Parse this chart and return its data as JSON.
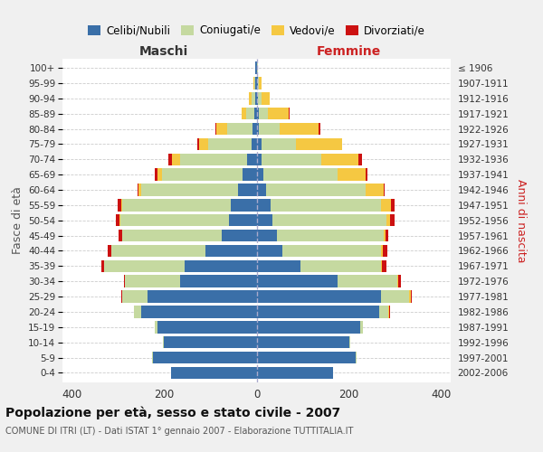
{
  "age_groups": [
    "0-4",
    "5-9",
    "10-14",
    "15-19",
    "20-24",
    "25-29",
    "30-34",
    "35-39",
    "40-44",
    "45-49",
    "50-54",
    "55-59",
    "60-64",
    "65-69",
    "70-74",
    "75-79",
    "80-84",
    "85-89",
    "90-94",
    "95-99",
    "100+"
  ],
  "birth_years": [
    "2002-2006",
    "1997-2001",
    "1992-1996",
    "1987-1991",
    "1982-1986",
    "1977-1981",
    "1972-1976",
    "1967-1971",
    "1962-1966",
    "1957-1961",
    "1952-1956",
    "1947-1951",
    "1942-1946",
    "1937-1941",
    "1932-1936",
    "1927-1931",
    "1922-1926",
    "1917-1921",
    "1912-1916",
    "1907-1911",
    "≤ 1906"
  ],
  "colors": {
    "celibi": "#3a6fa8",
    "coniugati": "#c5d9a0",
    "vedovi": "#f5c842",
    "divorziati": "#cc1111"
  },
  "males": {
    "celibi": [
      185,
      225,
      200,
      215,
      250,
      235,
      165,
      155,
      110,
      75,
      60,
      55,
      40,
      30,
      20,
      10,
      8,
      4,
      3,
      2,
      2
    ],
    "coniugati": [
      1,
      1,
      2,
      5,
      15,
      55,
      120,
      175,
      205,
      215,
      235,
      235,
      210,
      175,
      145,
      95,
      55,
      18,
      8,
      3,
      1
    ],
    "vedovi": [
      0,
      0,
      0,
      0,
      0,
      0,
      0,
      0,
      0,
      1,
      2,
      3,
      5,
      10,
      18,
      20,
      25,
      10,
      5,
      2,
      0
    ],
    "divorziati": [
      0,
      0,
      0,
      0,
      1,
      2,
      2,
      5,
      8,
      8,
      8,
      8,
      3,
      5,
      8,
      3,
      2,
      0,
      0,
      0,
      0
    ]
  },
  "females": {
    "nubili": [
      165,
      215,
      200,
      225,
      265,
      270,
      175,
      95,
      55,
      45,
      35,
      30,
      20,
      15,
      10,
      10,
      5,
      5,
      3,
      3,
      1
    ],
    "coniugati": [
      1,
      1,
      2,
      5,
      20,
      60,
      130,
      175,
      215,
      230,
      245,
      240,
      215,
      160,
      130,
      75,
      45,
      20,
      8,
      2,
      1
    ],
    "vedovi": [
      0,
      0,
      0,
      0,
      1,
      3,
      2,
      2,
      3,
      4,
      8,
      20,
      40,
      60,
      80,
      100,
      85,
      45,
      18,
      5,
      1
    ],
    "divorziati": [
      0,
      0,
      0,
      0,
      2,
      3,
      5,
      8,
      10,
      5,
      10,
      8,
      3,
      5,
      8,
      0,
      3,
      2,
      0,
      0,
      0
    ]
  },
  "title": "Popolazione per età, sesso e stato civile - 2007",
  "subtitle": "COMUNE DI ITRI (LT) - Dati ISTAT 1° gennaio 2007 - Elaborazione TUTTITALIA.IT",
  "label_maschi": "Maschi",
  "label_femmine": "Femmine",
  "ylabel_left": "Fasce di età",
  "ylabel_right": "Anni di nascita",
  "xlim": 420,
  "background_color": "#f0f0f0",
  "plot_bg": "#ffffff",
  "legend_labels": [
    "Celibi/Nubili",
    "Coniugati/e",
    "Vedovi/e",
    "Divorziati/e"
  ]
}
